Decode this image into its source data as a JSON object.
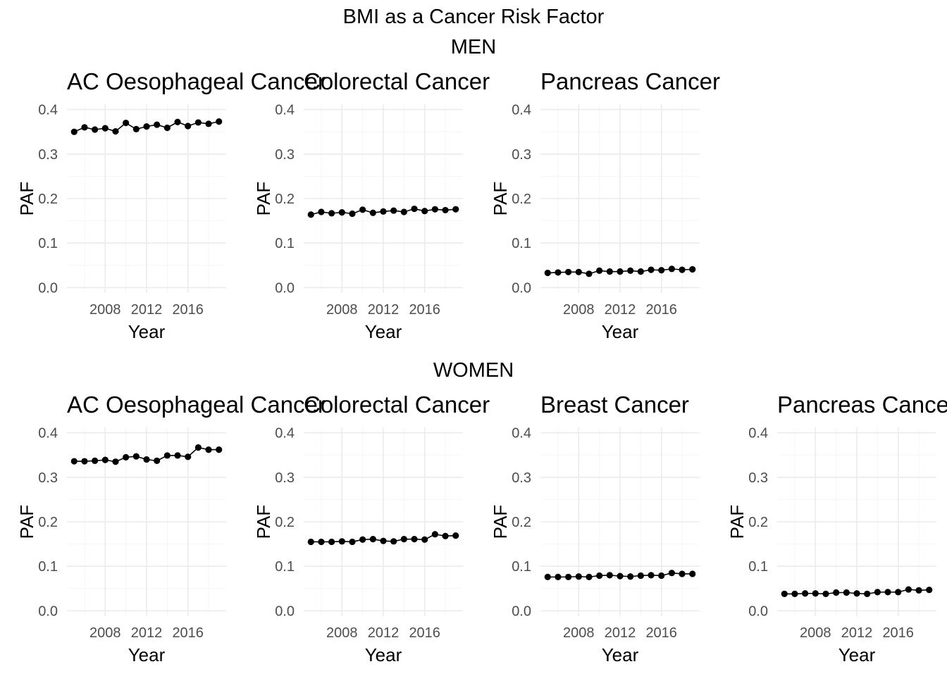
{
  "title": "BMI as a Cancer Risk Factor",
  "sections": [
    {
      "label": "MEN",
      "panels": [
        {
          "title": "AC Oesophageal Cancer",
          "xlabel": "Year",
          "ylabel": "PAF",
          "yticks": [
            "0.0",
            "0.1",
            "0.2",
            "0.3",
            "0.4"
          ],
          "xticks": [
            "2008",
            "2012",
            "2016"
          ]
        },
        {
          "title": "Colorectal Cancer",
          "xlabel": "Year",
          "ylabel": "PAF",
          "yticks": [
            "0.0",
            "0.1",
            "0.2",
            "0.3",
            "0.4"
          ],
          "xticks": [
            "2008",
            "2012",
            "2016"
          ]
        },
        {
          "title": "Pancreas Cancer",
          "xlabel": "Year",
          "ylabel": "PAF",
          "yticks": [
            "0.0",
            "0.1",
            "0.2",
            "0.3",
            "0.4"
          ],
          "xticks": [
            "2008",
            "2012",
            "2016"
          ]
        }
      ]
    },
    {
      "label": "WOMEN",
      "panels": [
        {
          "title": "AC Oesophageal Cancer",
          "xlabel": "Year",
          "ylabel": "PAF",
          "yticks": [
            "0.0",
            "0.1",
            "0.2",
            "0.3",
            "0.4"
          ],
          "xticks": [
            "2008",
            "2012",
            "2016"
          ]
        },
        {
          "title": "Colorectal Cancer",
          "xlabel": "Year",
          "ylabel": "PAF",
          "yticks": [
            "0.0",
            "0.1",
            "0.2",
            "0.3",
            "0.4"
          ],
          "xticks": [
            "2008",
            "2012",
            "2016"
          ]
        },
        {
          "title": "Breast Cancer",
          "xlabel": "Year",
          "ylabel": "PAF",
          "yticks": [
            "0.0",
            "0.1",
            "0.2",
            "0.3",
            "0.4"
          ],
          "xticks": [
            "2008",
            "2012",
            "2016"
          ]
        },
        {
          "title": "Pancreas Cancer",
          "xlabel": "Year",
          "ylabel": "PAF",
          "yticks": [
            "0.0",
            "0.1",
            "0.2",
            "0.3",
            "0.4"
          ],
          "xticks": [
            "2008",
            "2012",
            "2016"
          ]
        }
      ]
    }
  ],
  "chart_data": [
    {
      "type": "line",
      "group": "MEN",
      "title": "AC Oesophageal Cancer",
      "xlabel": "Year",
      "ylabel": "PAF",
      "xlim": [
        2004.3,
        2019.7
      ],
      "ylim": [
        -0.012,
        0.412
      ],
      "grid": true,
      "x": [
        2005,
        2006,
        2007,
        2008,
        2009,
        2010,
        2011,
        2012,
        2013,
        2014,
        2015,
        2016,
        2017,
        2018,
        2019
      ],
      "y": [
        0.35,
        0.36,
        0.355,
        0.358,
        0.351,
        0.37,
        0.356,
        0.362,
        0.366,
        0.359,
        0.372,
        0.363,
        0.371,
        0.368,
        0.373
      ]
    },
    {
      "type": "line",
      "group": "MEN",
      "title": "Colorectal Cancer",
      "xlabel": "Year",
      "ylabel": "PAF",
      "xlim": [
        2004.3,
        2019.7
      ],
      "ylim": [
        -0.012,
        0.412
      ],
      "grid": true,
      "x": [
        2005,
        2006,
        2007,
        2008,
        2009,
        2010,
        2011,
        2012,
        2013,
        2014,
        2015,
        2016,
        2017,
        2018,
        2019
      ],
      "y": [
        0.164,
        0.17,
        0.167,
        0.169,
        0.166,
        0.175,
        0.168,
        0.171,
        0.173,
        0.17,
        0.177,
        0.172,
        0.176,
        0.174,
        0.176
      ]
    },
    {
      "type": "line",
      "group": "MEN",
      "title": "Pancreas Cancer",
      "xlabel": "Year",
      "ylabel": "PAF",
      "xlim": [
        2004.3,
        2019.7
      ],
      "ylim": [
        -0.012,
        0.412
      ],
      "grid": true,
      "x": [
        2005,
        2006,
        2007,
        2008,
        2009,
        2010,
        2011,
        2012,
        2013,
        2014,
        2015,
        2016,
        2017,
        2018,
        2019
      ],
      "y": [
        0.033,
        0.034,
        0.035,
        0.035,
        0.031,
        0.038,
        0.036,
        0.036,
        0.038,
        0.036,
        0.04,
        0.039,
        0.042,
        0.04,
        0.041
      ]
    },
    {
      "type": "line",
      "group": "WOMEN",
      "title": "AC Oesophageal Cancer",
      "xlabel": "Year",
      "ylabel": "PAF",
      "xlim": [
        2004.3,
        2019.7
      ],
      "ylim": [
        -0.012,
        0.412
      ],
      "grid": true,
      "x": [
        2005,
        2006,
        2007,
        2008,
        2009,
        2010,
        2011,
        2012,
        2013,
        2014,
        2015,
        2016,
        2017,
        2018,
        2019
      ],
      "y": [
        0.336,
        0.336,
        0.337,
        0.339,
        0.335,
        0.345,
        0.347,
        0.34,
        0.337,
        0.349,
        0.349,
        0.346,
        0.367,
        0.362,
        0.362
      ]
    },
    {
      "type": "line",
      "group": "WOMEN",
      "title": "Colorectal Cancer",
      "xlabel": "Year",
      "ylabel": "PAF",
      "xlim": [
        2004.3,
        2019.7
      ],
      "ylim": [
        -0.012,
        0.412
      ],
      "grid": true,
      "x": [
        2005,
        2006,
        2007,
        2008,
        2009,
        2010,
        2011,
        2012,
        2013,
        2014,
        2015,
        2016,
        2017,
        2018,
        2019
      ],
      "y": [
        0.155,
        0.155,
        0.155,
        0.156,
        0.155,
        0.16,
        0.161,
        0.157,
        0.156,
        0.161,
        0.161,
        0.16,
        0.172,
        0.168,
        0.169
      ]
    },
    {
      "type": "line",
      "group": "WOMEN",
      "title": "Breast Cancer",
      "xlabel": "Year",
      "ylabel": "PAF",
      "xlim": [
        2004.3,
        2019.7
      ],
      "ylim": [
        -0.012,
        0.412
      ],
      "grid": true,
      "x": [
        2005,
        2006,
        2007,
        2008,
        2009,
        2010,
        2011,
        2012,
        2013,
        2014,
        2015,
        2016,
        2017,
        2018,
        2019
      ],
      "y": [
        0.076,
        0.076,
        0.076,
        0.077,
        0.076,
        0.079,
        0.08,
        0.078,
        0.077,
        0.079,
        0.08,
        0.079,
        0.085,
        0.083,
        0.083
      ]
    },
    {
      "type": "line",
      "group": "WOMEN",
      "title": "Pancreas Cancer",
      "xlabel": "Year",
      "ylabel": "PAF",
      "xlim": [
        2004.3,
        2019.7
      ],
      "ylim": [
        -0.012,
        0.412
      ],
      "grid": true,
      "x": [
        2005,
        2006,
        2007,
        2008,
        2009,
        2010,
        2011,
        2012,
        2013,
        2014,
        2015,
        2016,
        2017,
        2018,
        2019
      ],
      "y": [
        0.038,
        0.038,
        0.039,
        0.039,
        0.038,
        0.041,
        0.041,
        0.039,
        0.038,
        0.042,
        0.042,
        0.042,
        0.048,
        0.046,
        0.047
      ]
    }
  ],
  "colors": {
    "line": "#000000",
    "grid_major": "#ebebeb",
    "grid_minor": "#f5f5f5",
    "tick_text": "#4d4d4d"
  }
}
